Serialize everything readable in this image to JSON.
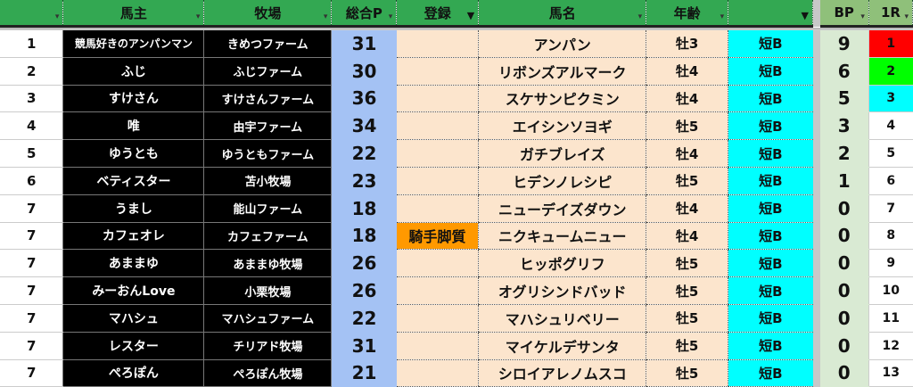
{
  "headers": {
    "rank": "",
    "owner": "馬主",
    "farm": "牧場",
    "points": "総合P",
    "register": "登録",
    "horse": "馬名",
    "age": "年齢",
    "type": "",
    "bp": "BP",
    "r1": "1R"
  },
  "colors": {
    "header": "#33a852",
    "owner_bg": "#000000",
    "points_bg": "#a4c2f4",
    "horse_bg": "#fce5cd",
    "type_bg": "#00ffff",
    "bp_bg": "#d9ead3",
    "jockey_bg": "#ff9900",
    "r1_first": "#ff0000",
    "r1_second": "#00ff00",
    "r1_third": "#00ffff"
  },
  "rows": [
    {
      "rank": "1",
      "owner": "競馬好きのアンパンマン",
      "farm": "きめつファーム",
      "points": "31",
      "register": "",
      "horse": "アンパン",
      "age": "牡3",
      "type": "短B",
      "bp": "9",
      "r1": "1",
      "r1_color": "#ff0000"
    },
    {
      "rank": "2",
      "owner": "ふじ",
      "farm": "ふじファーム",
      "points": "30",
      "register": "",
      "horse": "リボンズアルマーク",
      "age": "牡4",
      "type": "短B",
      "bp": "6",
      "r1": "2",
      "r1_color": "#00ff00"
    },
    {
      "rank": "3",
      "owner": "すけさん",
      "farm": "すけさんファーム",
      "points": "36",
      "register": "",
      "horse": "スケサンピクミン",
      "age": "牡4",
      "type": "短B",
      "bp": "5",
      "r1": "3",
      "r1_color": "#00ffff"
    },
    {
      "rank": "4",
      "owner": "唯",
      "farm": "由宇ファーム",
      "points": "34",
      "register": "",
      "horse": "エイシンソヨギ",
      "age": "牡5",
      "type": "短B",
      "bp": "3",
      "r1": "4",
      "r1_color": ""
    },
    {
      "rank": "5",
      "owner": "ゆうとも",
      "farm": "ゆうともファーム",
      "points": "22",
      "register": "",
      "horse": "ガチブレイズ",
      "age": "牡4",
      "type": "短B",
      "bp": "2",
      "r1": "5",
      "r1_color": ""
    },
    {
      "rank": "6",
      "owner": "ベティスター",
      "farm": "苫小牧場",
      "points": "23",
      "register": "",
      "horse": "ヒデンノレシピ",
      "age": "牡5",
      "type": "短B",
      "bp": "1",
      "r1": "6",
      "r1_color": ""
    },
    {
      "rank": "7",
      "owner": "うまし",
      "farm": "能山ファーム",
      "points": "18",
      "register": "",
      "horse": "ニューデイズダウン",
      "age": "牡4",
      "type": "短B",
      "bp": "0",
      "r1": "7",
      "r1_color": ""
    },
    {
      "rank": "7",
      "owner": "カフェオレ",
      "farm": "カフェファーム",
      "points": "18",
      "register": "騎手脚質",
      "horse": "ニクキュームニュー",
      "age": "牡4",
      "type": "短B",
      "bp": "0",
      "r1": "8",
      "r1_color": ""
    },
    {
      "rank": "7",
      "owner": "あままゆ",
      "farm": "あままゆ牧場",
      "points": "26",
      "register": "",
      "horse": "ヒッポグリフ",
      "age": "牡5",
      "type": "短B",
      "bp": "0",
      "r1": "9",
      "r1_color": ""
    },
    {
      "rank": "7",
      "owner": "みーおんLove",
      "farm": "小栗牧場",
      "points": "26",
      "register": "",
      "horse": "オグリシンドバッド",
      "age": "牡5",
      "type": "短B",
      "bp": "0",
      "r1": "10",
      "r1_color": ""
    },
    {
      "rank": "7",
      "owner": "マハシュ",
      "farm": "マハシュファーム",
      "points": "22",
      "register": "",
      "horse": "マハシュリベリー",
      "age": "牡5",
      "type": "短B",
      "bp": "0",
      "r1": "11",
      "r1_color": ""
    },
    {
      "rank": "7",
      "owner": "レスター",
      "farm": "チリアド牧場",
      "points": "31",
      "register": "",
      "horse": "マイケルデサンタ",
      "age": "牡5",
      "type": "短B",
      "bp": "0",
      "r1": "12",
      "r1_color": ""
    },
    {
      "rank": "7",
      "owner": "ぺろぽん",
      "farm": "ぺろぽん牧場",
      "points": "21",
      "register": "",
      "horse": "シロイアレノムスコ",
      "age": "牡5",
      "type": "短B",
      "bp": "0",
      "r1": "13",
      "r1_color": ""
    }
  ]
}
